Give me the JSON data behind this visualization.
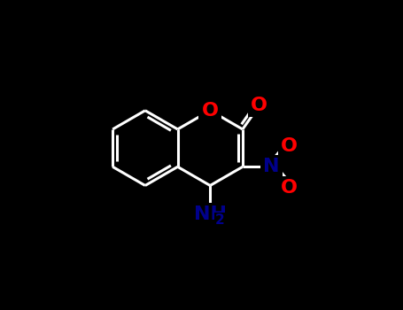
{
  "background": "#000000",
  "bond_color": "#ffffff",
  "bond_width": 2.2,
  "o_color": "#ff0000",
  "n_color": "#00008b",
  "atom_bg": "#000000",
  "font_size_atom": 16,
  "font_size_subscript": 11,
  "figsize": [
    4.55,
    3.5
  ],
  "dpi": 100,
  "xlim": [
    0,
    9.1
  ],
  "ylim": [
    0,
    7.0
  ]
}
